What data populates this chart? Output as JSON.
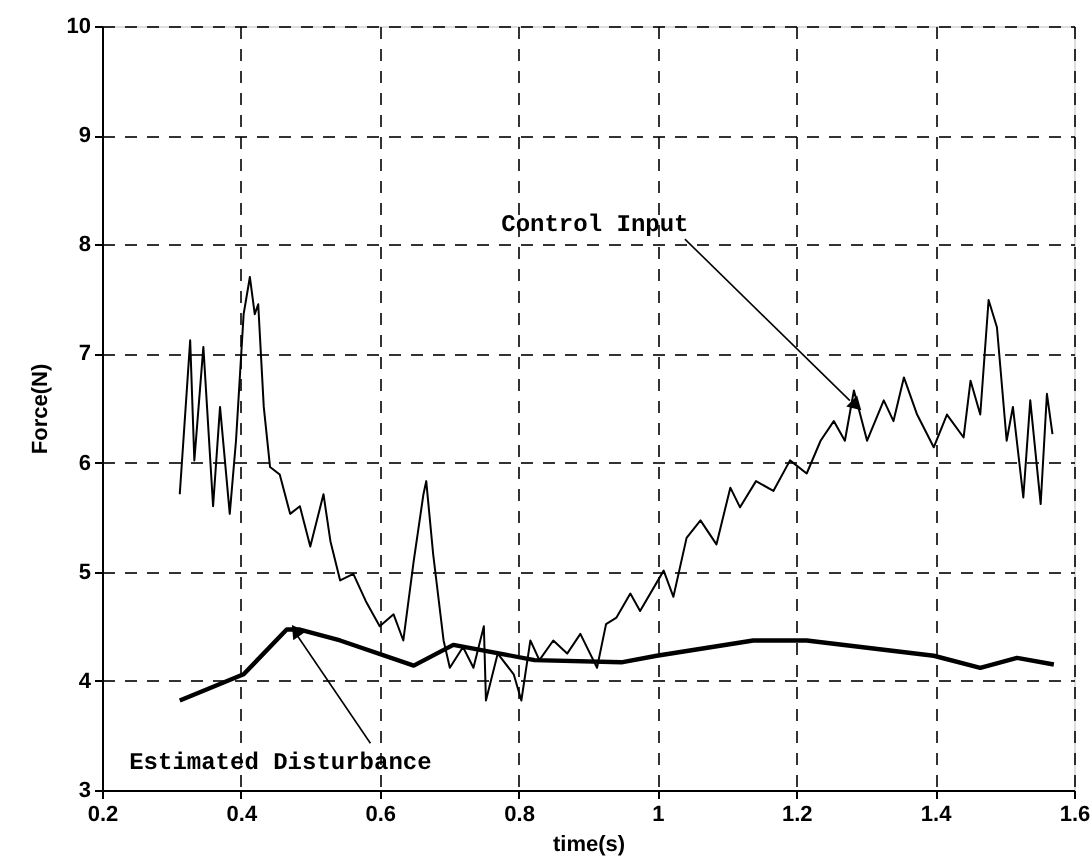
{
  "chart_data": {
    "type": "line",
    "xlabel": "time(s)",
    "ylabel": "Force(N)",
    "xlim": [
      0.2,
      1.6
    ],
    "xticks": [
      0.2,
      0.4,
      0.6,
      0.8,
      1,
      1.2,
      1.4,
      1.6
    ],
    "ylim": [
      3,
      10
    ],
    "yticks": [
      3,
      4,
      5,
      6,
      7,
      8,
      9,
      10
    ],
    "grid": true,
    "marker": "none",
    "line_style": "solid",
    "series": [
      {
        "color": "#000000",
        "x": [
          0.312,
          0.327,
          0.333,
          0.346,
          0.36,
          0.37,
          0.384,
          0.393,
          0.404,
          0.413,
          0.42,
          0.425,
          0.433,
          0.442,
          0.456,
          0.471,
          0.485,
          0.5,
          0.519,
          0.529,
          0.543,
          0.562,
          0.58,
          0.6,
          0.62,
          0.634,
          0.649,
          0.663,
          0.667,
          0.677,
          0.692,
          0.701,
          0.72,
          0.735,
          0.75,
          0.753,
          0.77,
          0.793,
          0.804,
          0.817,
          0.83,
          0.85,
          0.87,
          0.889,
          0.913,
          0.926,
          0.941,
          0.961,
          0.975,
          1.009,
          1.023,
          1.042,
          1.062,
          1.085,
          1.105,
          1.119,
          1.142,
          1.167,
          1.191,
          1.215,
          1.235,
          1.254,
          1.27,
          1.283,
          1.302,
          1.326,
          1.34,
          1.355,
          1.374,
          1.398,
          1.417,
          1.441,
          1.451,
          1.465,
          1.477,
          1.489,
          1.503,
          1.512,
          1.527,
          1.537,
          1.552,
          1.561,
          1.569
        ],
        "values": [
          5.71,
          7.12,
          6.02,
          7.06,
          5.6,
          6.51,
          5.53,
          6.2,
          7.36,
          7.7,
          7.36,
          7.45,
          6.51,
          5.96,
          5.89,
          5.53,
          5.6,
          5.23,
          5.71,
          5.28,
          4.92,
          4.98,
          4.73,
          4.5,
          4.61,
          4.37,
          5.1,
          5.71,
          5.83,
          5.16,
          4.37,
          4.12,
          4.31,
          4.12,
          4.5,
          3.82,
          4.25,
          4.06,
          3.82,
          4.37,
          4.19,
          4.37,
          4.25,
          4.43,
          4.12,
          4.52,
          4.58,
          4.8,
          4.64,
          5.01,
          4.77,
          5.31,
          5.47,
          5.25,
          5.77,
          5.59,
          5.83,
          5.74,
          6.02,
          5.9,
          6.2,
          6.38,
          6.2,
          6.66,
          6.2,
          6.57,
          6.38,
          6.78,
          6.44,
          6.14,
          6.44,
          6.23,
          6.75,
          6.44,
          7.49,
          7.24,
          6.2,
          6.51,
          5.68,
          6.57,
          5.62,
          6.63,
          6.26
        ]
      },
      {
        "color": "#000000",
        "x": [
          0.312,
          0.404,
          0.466,
          0.485,
          0.543,
          0.649,
          0.706,
          0.823,
          0.948,
          0.999,
          1.138,
          1.215,
          1.398,
          1.465,
          1.518,
          1.571
        ],
        "values": [
          3.82,
          4.06,
          4.47,
          4.47,
          4.37,
          4.14,
          4.33,
          4.19,
          4.17,
          4.23,
          4.37,
          4.37,
          4.23,
          4.12,
          4.21,
          4.15
        ]
      }
    ],
    "annotations": [
      {
        "text": "Control Input",
        "x": 1.27,
        "y": 6.6
      },
      {
        "text": "Estimated Disturbance",
        "x": 0.48,
        "y": 4.4
      }
    ]
  }
}
